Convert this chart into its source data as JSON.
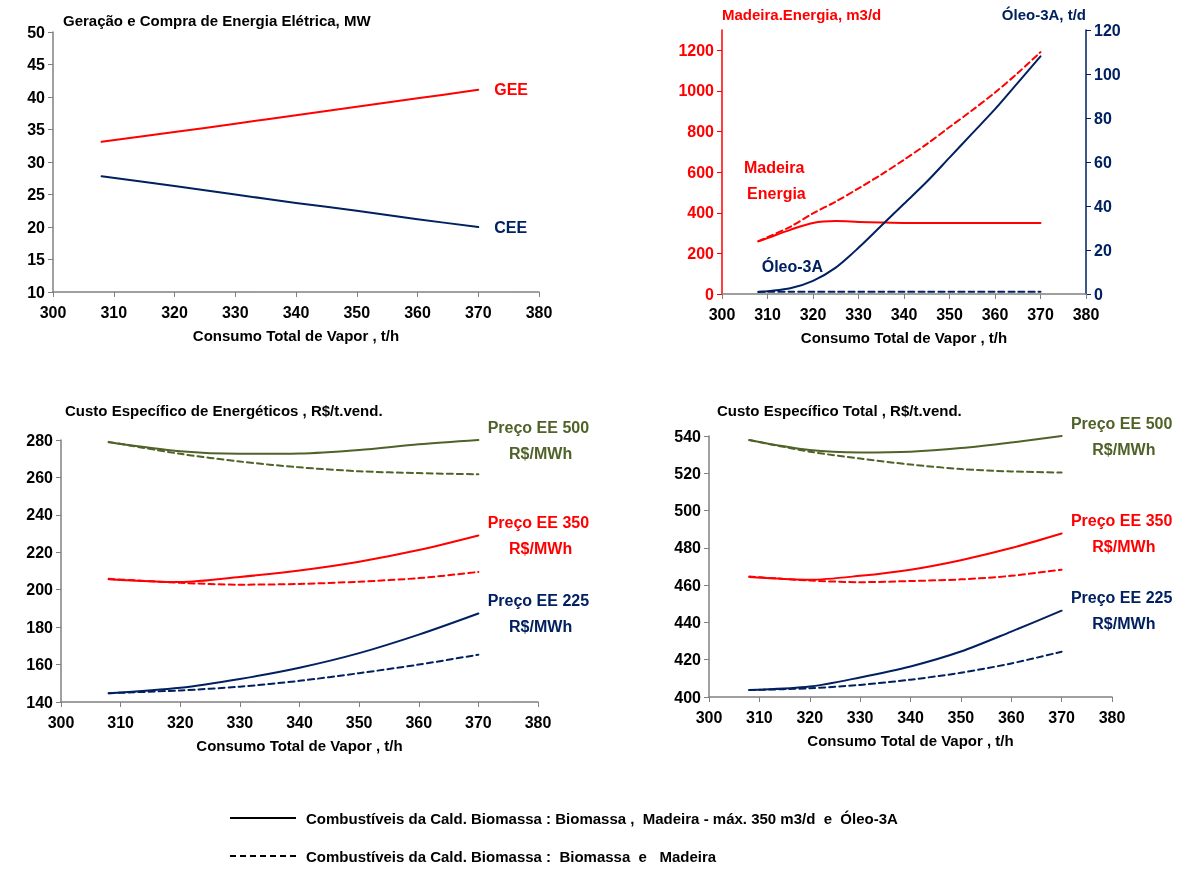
{
  "chart_data": [
    {
      "type": "line",
      "title": "Geração e Compra de Energia Elétrica, MW",
      "xlabel": "Consumo Total de Vapor , t/h",
      "xlim": [
        300,
        380
      ],
      "xticks": [
        300,
        310,
        320,
        330,
        340,
        350,
        360,
        370,
        380
      ],
      "ylim": [
        10,
        50
      ],
      "yticks": [
        10,
        15,
        20,
        25,
        30,
        35,
        40,
        45,
        50
      ],
      "x": [
        308,
        320,
        330,
        340,
        350,
        360,
        370
      ],
      "series": [
        {
          "name": "GEE",
          "color": "#ff0000",
          "line_style": "solid",
          "values": [
            33.1,
            34.6,
            35.9,
            37.2,
            38.5,
            39.8,
            41.1
          ]
        },
        {
          "name": "CEE",
          "color": "#002060",
          "line_style": "solid",
          "values": [
            27.8,
            26.3,
            25.0,
            23.7,
            22.5,
            21.2,
            20.0
          ]
        }
      ]
    },
    {
      "type": "line",
      "ylabel": "Madeira.Energia, m3/d",
      "y2label": "Óleo-3A, t/d",
      "xlabel": "Consumo Total de Vapor , t/h",
      "xlim": [
        300,
        380
      ],
      "xticks": [
        300,
        310,
        320,
        330,
        340,
        350,
        360,
        370,
        380
      ],
      "ylim": [
        0,
        1300
      ],
      "yticks": [
        0,
        200,
        400,
        600,
        800,
        1000,
        1200
      ],
      "y2lim": [
        0,
        120
      ],
      "y2ticks": [
        0,
        20,
        40,
        60,
        80,
        100,
        120
      ],
      "x": [
        308,
        310,
        315,
        320,
        325,
        330,
        335,
        340,
        345,
        350,
        355,
        360,
        365,
        370
      ],
      "series": [
        {
          "name": "Madeira Energia",
          "color": "#ff0000",
          "line_style": "solid",
          "values": [
            259,
            275,
            316,
            350,
            359,
            355,
            352,
            350,
            350,
            350,
            350,
            350,
            350,
            350
          ]
        },
        {
          "color": "#ff0000",
          "line_style": "dashed",
          "values": [
            260,
            280,
            331,
            397,
            455,
            520,
            588,
            661,
            738,
            822,
            905,
            992,
            1088,
            1191
          ]
        },
        {
          "name": "Óleo-3A",
          "color": "#002060",
          "line_style": "solid",
          "axis": "y2",
          "values": [
            0.9,
            1.3,
            2.6,
            6,
            12,
            21,
            31,
            41,
            51,
            62,
            73,
            84,
            96,
            108
          ]
        },
        {
          "color": "#002060",
          "line_style": "dashed",
          "axis": "y2",
          "values": [
            1,
            1,
            1,
            1,
            1,
            1,
            1,
            1,
            1,
            1,
            1,
            1,
            1,
            1
          ]
        }
      ]
    },
    {
      "type": "line",
      "title": "Custo Específico de Energéticos , R$/t.vend.",
      "xlabel": "Consumo Total de Vapor , t/h",
      "xlim": [
        300,
        380
      ],
      "xticks": [
        300,
        310,
        320,
        330,
        340,
        350,
        360,
        370,
        380
      ],
      "ylim": [
        140,
        280
      ],
      "yticks": [
        140,
        160,
        180,
        200,
        220,
        240,
        260,
        280
      ],
      "x": [
        308,
        320,
        330,
        340,
        350,
        360,
        370
      ],
      "series": [
        {
          "name": "Preço EE 500 R$/MWh",
          "color": "#4f6228",
          "line_style": "solid",
          "values": [
            278.8,
            274.0,
            272.6,
            272.8,
            274.7,
            277.7,
            280.0
          ]
        },
        {
          "color": "#4f6228",
          "line_style": "dashed",
          "values": [
            279.0,
            272.6,
            268.5,
            265.4,
            263.3,
            262.3,
            261.7
          ]
        },
        {
          "name": "Preço EE 350 R$/MWh",
          "color": "#ff0000",
          "line_style": "solid",
          "values": [
            205.6,
            204.1,
            206.8,
            210.3,
            215.0,
            221.2,
            229.0
          ]
        },
        {
          "color": "#ff0000",
          "line_style": "dashed",
          "values": [
            205.8,
            203.7,
            202.7,
            203.1,
            204.3,
            206.2,
            209.5
          ]
        },
        {
          "name": "Preço EE 225 R$/MWh",
          "color": "#002060",
          "line_style": "solid",
          "values": [
            144.7,
            147.6,
            152.3,
            158.3,
            166.1,
            176.0,
            187.3
          ]
        },
        {
          "color": "#002060",
          "line_style": "dashed",
          "values": [
            144.7,
            146.2,
            148.2,
            151.3,
            155.4,
            160.0,
            165.3
          ]
        }
      ]
    },
    {
      "type": "line",
      "title": "Custo Específico Total , R$/t.vend.",
      "xlabel": "Consumo Total de Vapor , t/h",
      "xlim": [
        300,
        380
      ],
      "xticks": [
        300,
        310,
        320,
        330,
        340,
        350,
        360,
        370,
        380
      ],
      "ylim": [
        400,
        540
      ],
      "yticks": [
        400,
        420,
        440,
        460,
        480,
        500,
        520,
        540
      ],
      "x": [
        308,
        320,
        330,
        340,
        350,
        360,
        370
      ],
      "series": [
        {
          "name": "Preço EE 500 R$/MWh",
          "color": "#4f6228",
          "line_style": "solid",
          "values": [
            537.8,
            532.5,
            531.2,
            531.6,
            533.5,
            536.5,
            540.0
          ]
        },
        {
          "color": "#4f6228",
          "line_style": "dashed",
          "values": [
            537.8,
            531.6,
            527.9,
            524.7,
            522.3,
            521.0,
            520.4
          ]
        },
        {
          "name": "Preço EE 350 R$/MWh",
          "color": "#ff0000",
          "line_style": "solid",
          "values": [
            464.4,
            462.9,
            465.0,
            468.3,
            473.4,
            479.9,
            487.7
          ]
        },
        {
          "color": "#ff0000",
          "line_style": "dashed",
          "values": [
            464.6,
            462.5,
            461.6,
            462.2,
            463.1,
            465.0,
            468.3
          ]
        },
        {
          "name": "Preço EE 225 R$/MWh",
          "color": "#002060",
          "line_style": "solid",
          "values": [
            403.7,
            405.6,
            410.5,
            416.4,
            424.4,
            435.1,
            446.3
          ]
        },
        {
          "color": "#002060",
          "line_style": "dashed",
          "values": [
            403.7,
            404.7,
            406.5,
            409.3,
            413.0,
            418.0,
            424.3
          ]
        }
      ]
    },
    {
      "type": "other",
      "annotations": [
        "Combustíveis da Cald. Biomassa : Biomassa ,  Madeira - máx. 350 m3/d  e  Óleo-3A",
        "Combustíveis da Cald. Biomassa :  Biomassa  e   Madeira"
      ]
    }
  ]
}
